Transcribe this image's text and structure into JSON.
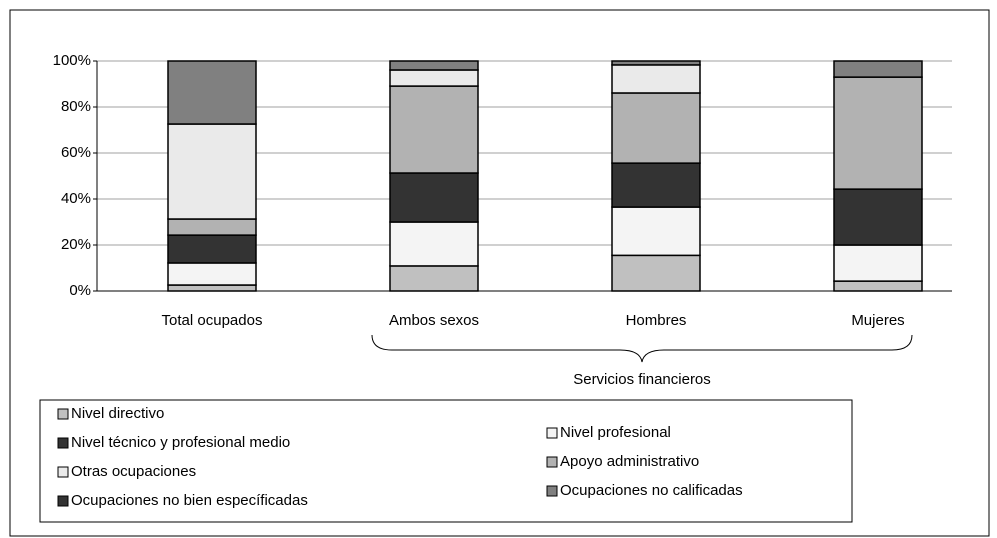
{
  "chart_data": {
    "type": "stacked_bar",
    "categories": [
      "Total ocupados",
      "Ambos sexos",
      "Hombres",
      "Mujeres"
    ],
    "series": [
      {
        "name": "Nivel directivo",
        "color": "#c0c0c0",
        "values": [
          2.6,
          10.9,
          15.5,
          4.3
        ]
      },
      {
        "name": "Nivel profesional",
        "color": "#f4f4f4",
        "values": [
          9.6,
          19.1,
          21,
          15.7
        ]
      },
      {
        "name": "Nivel técnico y profesional medio",
        "color": "#333333",
        "values": [
          12.1,
          21.3,
          19.1,
          24.3
        ]
      },
      {
        "name": "Apoyo administrativo",
        "color": "#b2b2b2",
        "values": [
          7,
          37.8,
          30.5,
          48.7
        ]
      },
      {
        "name": "Otras ocupaciones",
        "color": "#eaeaea",
        "values": [
          41.3,
          7,
          12.2,
          0
        ]
      },
      {
        "name": "Ocupaciones no calificadas",
        "color": "#808080",
        "values": [
          27.4,
          3.9,
          1.7,
          7
        ]
      },
      {
        "name": "Ocupaciones no bien específicadas",
        "color": "#333333",
        "values": [
          0,
          0,
          0,
          0
        ]
      }
    ],
    "annotation": "Servicios financieros",
    "ylim": [
      0,
      100
    ],
    "yticks": [
      {
        "value": 0,
        "label": "0%"
      },
      {
        "value": 20,
        "label": "20%"
      },
      {
        "value": 40,
        "label": "40%"
      },
      {
        "value": 60,
        "label": "60%"
      },
      {
        "value": 80,
        "label": "80%"
      },
      {
        "value": 100,
        "label": "100%"
      }
    ],
    "grid": true
  }
}
